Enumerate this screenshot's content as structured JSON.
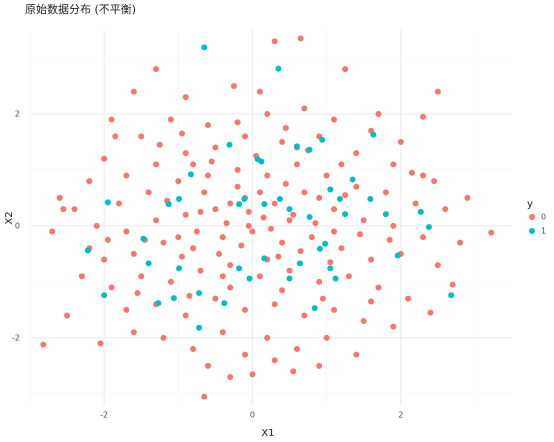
{
  "chart_data": {
    "type": "scatter",
    "title": "原始数据分布 (不平衡)",
    "x_label": "X1",
    "y_label": "X2",
    "legend_title": "y",
    "legend_position": "right",
    "grid": true,
    "xlim": [
      -3.0,
      3.5
    ],
    "ylim": [
      -3.2,
      3.5
    ],
    "xticks": [
      -2,
      0,
      2
    ],
    "yticks": [
      -2,
      0,
      2
    ],
    "xminor": [
      -3,
      -1,
      1,
      3
    ],
    "yminor": [
      -3,
      -1,
      1,
      3
    ],
    "series": [
      {
        "name": "0",
        "color": "#F8766D",
        "x": [
          -2.82,
          3.22,
          -2.6,
          -2.55,
          -2.4,
          -2.2,
          -2.5,
          -2.05,
          -1.6,
          -1.3,
          -1.6,
          -0.25,
          0.3,
          0.65,
          1.25,
          2.5,
          -0.65,
          0.0,
          0.55,
          2.7,
          2.4,
          2.3,
          -0.9,
          -0.1,
          -1.9,
          -1.5,
          -1.1,
          -0.6,
          0.2,
          0.7,
          1.1,
          1.6,
          2.0,
          -2.0,
          -1.7,
          -1.3,
          -0.9,
          -0.5,
          -0.1,
          0.4,
          0.9,
          1.4,
          1.9,
          2.3,
          -2.2,
          -1.8,
          -1.4,
          -1.0,
          -0.6,
          -0.2,
          0.2,
          0.6,
          1.0,
          1.4,
          1.8,
          2.2,
          2.6,
          -2.1,
          -1.7,
          -1.3,
          -0.9,
          -0.5,
          -0.1,
          0.3,
          0.7,
          1.1,
          1.5,
          1.9,
          2.3,
          2.8,
          -2.0,
          -1.6,
          -1.2,
          -0.8,
          -0.4,
          0.0,
          0.4,
          0.8,
          1.2,
          1.6,
          2.0,
          2.5,
          -1.9,
          -1.5,
          -1.1,
          -0.7,
          -0.3,
          0.1,
          0.5,
          0.9,
          1.3,
          1.7,
          2.1,
          -1.7,
          -1.3,
          -0.9,
          -0.5,
          -0.1,
          0.3,
          0.7,
          1.1,
          1.5,
          1.9,
          -1.2,
          -0.8,
          -0.4,
          0.2,
          0.6,
          1.0,
          1.4,
          -0.3,
          0.9,
          -0.35,
          0.15,
          -0.05,
          0.25,
          -0.2,
          0.45,
          -0.65,
          0.55,
          -0.75,
          0.85,
          -0.45,
          0.35,
          -0.15,
          0.65,
          -0.95,
          1.05,
          -1.15,
          1.25,
          -1.45,
          1.45,
          -0.55,
          0.05,
          0.75,
          -1.25,
          1.2,
          -0.3,
          0.4,
          -0.85,
          0.95,
          -1.55,
          1.6,
          -0.2,
          0.45,
          -0.95,
          1.7,
          -2.3,
          2.45,
          -1.85,
          1.85,
          -1.95,
          2.15,
          0.1,
          -0.6,
          0.3,
          -0.05,
          0.1,
          -0.3,
          0.5,
          -0.7,
          0.9,
          -1.0,
          1.1,
          -0.4,
          0.2,
          0.6,
          -0.8,
          2.9,
          -2.7
        ],
        "values": [
          -2.12,
          -0.12,
          0.5,
          0.3,
          0.3,
          -0.4,
          -1.6,
          -2.1,
          -1.9,
          2.8,
          2.4,
          2.5,
          3.3,
          3.35,
          2.8,
          2.4,
          -3.05,
          -2.65,
          -2.6,
          -1.05,
          -1.55,
          1.95,
          2.3,
          -2.3,
          1.9,
          1.6,
          1.9,
          1.8,
          2.0,
          2.1,
          1.9,
          1.7,
          1.5,
          1.2,
          0.9,
          1.1,
          1.3,
          1.4,
          1.6,
          1.5,
          1.6,
          1.3,
          1.1,
          0.9,
          0.8,
          0.4,
          0.6,
          0.8,
          0.9,
          1.0,
          0.9,
          1.1,
          0.9,
          0.7,
          0.6,
          0.4,
          0.3,
          0.0,
          -0.1,
          0.1,
          0.2,
          0.3,
          0.5,
          0.4,
          0.6,
          0.3,
          0.1,
          0.0,
          -0.2,
          -0.3,
          -0.6,
          -0.5,
          -0.3,
          -0.4,
          -0.2,
          -0.1,
          -0.3,
          -0.2,
          -0.4,
          -0.6,
          -0.5,
          -0.7,
          -1.1,
          -0.9,
          -1.0,
          -0.8,
          -0.7,
          -0.9,
          -0.8,
          -1.0,
          -0.9,
          -1.1,
          -1.3,
          -1.5,
          -1.4,
          -1.6,
          -1.3,
          -1.5,
          -1.4,
          -1.6,
          -1.5,
          -1.7,
          -1.8,
          -2.0,
          -2.2,
          -1.9,
          -2.0,
          -2.2,
          -2.0,
          -2.3,
          -2.7,
          -2.5,
          0.05,
          0.15,
          0.25,
          -0.05,
          0.7,
          0.75,
          0.6,
          0.2,
          -0.1,
          0.05,
          -0.5,
          -0.55,
          -0.35,
          -0.45,
          -0.55,
          -0.65,
          0.45,
          0.55,
          -0.25,
          -0.15,
          1.15,
          1.25,
          1.35,
          1.45,
          1.1,
          -1.1,
          -1.15,
          -1.25,
          -1.3,
          -1.2,
          -1.35,
          1.85,
          1.75,
          1.65,
          2.0,
          -0.9,
          0.8,
          1.6,
          -0.25,
          -0.25,
          0.95,
          2.4,
          -2.5,
          -2.4,
          0.0,
          0.6,
          0.4,
          0.1,
          0.25,
          0.5,
          -0.2,
          -0.1,
          -0.9,
          -0.6,
          1.4,
          1.1,
          0.5,
          -0.1
        ]
      },
      {
        "name": "1",
        "color": "#00BFC4",
        "x": [
          -0.65,
          0.35,
          -1.95,
          -2.22,
          -2.0,
          -0.83,
          -0.31,
          0.07,
          0.12,
          0.6,
          0.77,
          0.94,
          1.63,
          1.35,
          1.05,
          1.18,
          1.59,
          1.8,
          2.27,
          2.38,
          2.68,
          1.96,
          1.25,
          0.77,
          0.5,
          0.37,
          0.16,
          -0.11,
          -0.18,
          -1.13,
          -0.99,
          -1.47,
          -1.4,
          -0.99,
          -1.06,
          -0.72,
          -0.38,
          -0.18,
          -0.04,
          0.16,
          0.5,
          0.64,
          0.84,
          0.91,
          1.05,
          0.98,
          -0.72,
          -1.27,
          1.12
        ],
        "values": [
          3.19,
          2.81,
          0.42,
          -0.44,
          -1.24,
          0.92,
          1.45,
          1.19,
          1.15,
          1.42,
          1.36,
          1.54,
          1.63,
          0.83,
          0.65,
          0.48,
          0.48,
          0.21,
          0.25,
          -0.02,
          -1.24,
          -0.53,
          0.21,
          0.16,
          0.3,
          0.48,
          0.39,
          0.48,
          0.39,
          0.39,
          0.48,
          -0.23,
          -0.67,
          -0.76,
          -1.29,
          -1.2,
          -1.38,
          -0.76,
          -0.94,
          -0.58,
          -0.94,
          -0.67,
          -1.47,
          -0.41,
          -0.76,
          -0.32,
          -1.82,
          -1.38,
          -0.94
        ]
      }
    ]
  }
}
